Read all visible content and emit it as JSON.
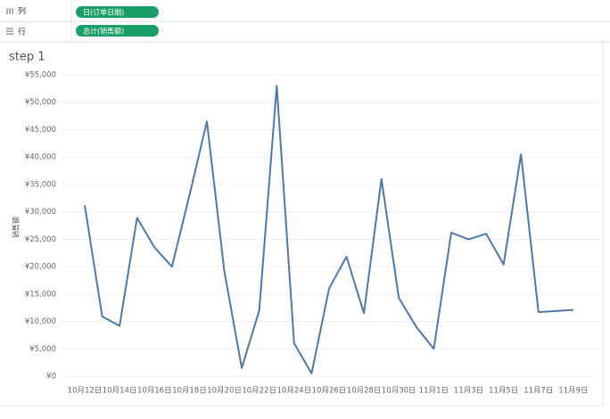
{
  "shelves": {
    "columns": {
      "label": "列",
      "pill": "日(订单日期)"
    },
    "rows": {
      "label": "行",
      "pill": "总计(销售额)"
    }
  },
  "chart_data": {
    "type": "line",
    "title": "step 1",
    "y_label": "销售额",
    "categories": [
      "10月12日",
      null,
      "10月14日",
      null,
      "10月16日",
      null,
      "10月18日",
      null,
      "10月20日",
      null,
      "10月22日",
      null,
      "10月24日",
      null,
      "10月26日",
      null,
      "10月28日",
      null,
      "10月30日",
      null,
      "11月1日",
      null,
      "11月3日",
      null,
      "11月5日",
      null,
      "11月7日",
      null,
      "11月9日"
    ],
    "series": [
      {
        "name": "销售额",
        "color": "#4e79a7",
        "values": [
          31200,
          10900,
          9200,
          28900,
          23500,
          20000,
          33000,
          46500,
          19200,
          1500,
          12000,
          53000,
          6000,
          500,
          16000,
          21800,
          11500,
          36000,
          14300,
          9000,
          5000,
          26200,
          25000,
          26000,
          20400,
          40500,
          11700,
          11900,
          12100
        ]
      }
    ],
    "ylim": [
      0,
      55000
    ],
    "yticks": [
      {
        "value": 0,
        "label": "¥0"
      },
      {
        "value": 5000,
        "label": "¥5,000"
      },
      {
        "value": 10000,
        "label": "¥10,000"
      },
      {
        "value": 15000,
        "label": "¥15,000"
      },
      {
        "value": 20000,
        "label": "¥20,000"
      },
      {
        "value": 25000,
        "label": "¥25,000"
      },
      {
        "value": 30000,
        "label": "¥30,000"
      },
      {
        "value": 35000,
        "label": "¥35,000"
      },
      {
        "value": 40000,
        "label": "¥40,000"
      },
      {
        "value": 45000,
        "label": "¥45,000"
      },
      {
        "value": 50000,
        "label": "¥50,000"
      },
      {
        "value": 55000,
        "label": "¥55,000"
      }
    ],
    "grid": true
  }
}
